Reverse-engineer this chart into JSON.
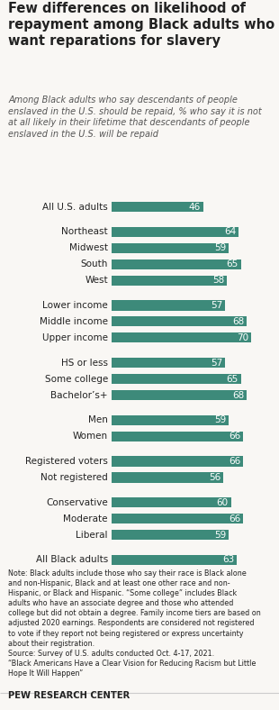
{
  "title": "Few differences on likelihood of\nrepayment among Black adults who\nwant reparations for slavery",
  "subtitle": "Among Black adults who say descendants of people\nenslaved in the U.S. should be repaid, % who say it is not\nat all likely in their lifetime that descendants of people\nenslaved in the U.S. will be repaid",
  "categories": [
    "All Black adults",
    "Conservative",
    "Moderate",
    "Liberal",
    "Registered voters",
    "Not registered",
    "Men",
    "Women",
    "HS or less",
    "Some college",
    "Bachelor’s+",
    "Lower income",
    "Middle income",
    "Upper income",
    "Northeast",
    "Midwest",
    "South",
    "West",
    "All U.S. adults"
  ],
  "values": [
    63,
    60,
    66,
    59,
    66,
    56,
    59,
    66,
    57,
    65,
    68,
    57,
    68,
    70,
    64,
    59,
    65,
    58,
    46
  ],
  "bar_color": "#3d8a7a",
  "bg_color": "#f9f7f4",
  "text_color": "#222222",
  "label_color": "#ffffff",
  "note": "Note: Black adults include those who say their race is Black alone\nand non-Hispanic, Black and at least one other race and non-\nHispanic, or Black and Hispanic. “Some college” includes Black\nadults who have an associate degree and those who attended\ncollege but did not obtain a degree. Family income tiers are based on\nadjusted 2020 earnings. Respondents are considered not registered\nto vote if they report not being registered or express uncertainty\nabout their registration.\nSource: Survey of U.S. adults conducted Oct. 4-17, 2021.\n“Black Americans Have a Clear Vision for Reducing Racism but Little\nHope It Will Happen”",
  "footer": "PEW RESEARCH CENTER",
  "xlim": [
    0,
    80
  ],
  "groups": [
    [
      0
    ],
    [
      1,
      2,
      3
    ],
    [
      4,
      5
    ],
    [
      6,
      7
    ],
    [
      8,
      9,
      10
    ],
    [
      11,
      12,
      13
    ],
    [
      14,
      15,
      16,
      17
    ],
    [
      18
    ]
  ]
}
